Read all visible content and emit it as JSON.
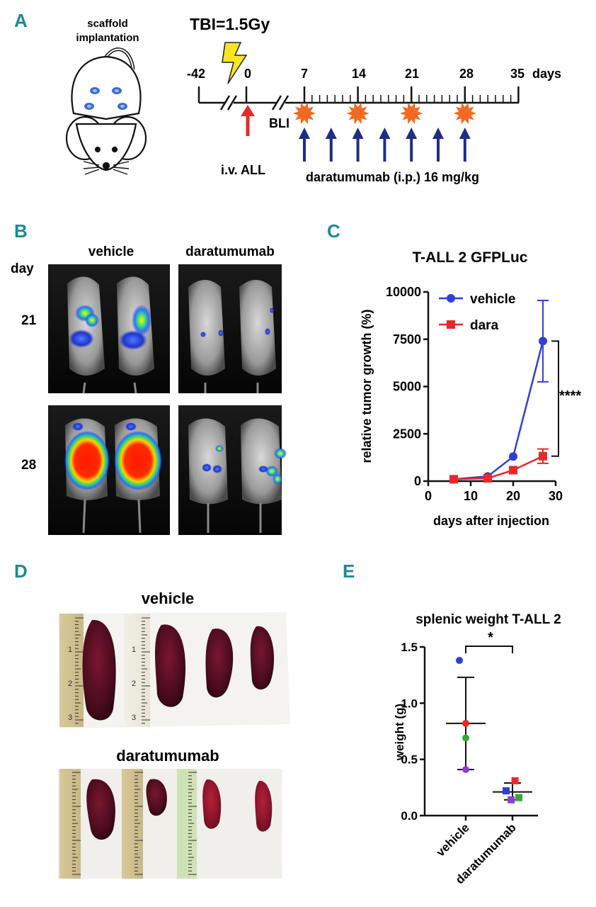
{
  "panel_labels": [
    "A",
    "B",
    "C",
    "D",
    "E"
  ],
  "panel_a": {
    "scaffold_label_line1": "scaffold",
    "scaffold_label_line2": "implantation",
    "tbi_label": "TBI=1.5Gy",
    "timeline_days": [
      "-42",
      "0",
      "7",
      "14",
      "21",
      "28",
      "35"
    ],
    "days_unit": "days",
    "bli_label": "BLI",
    "iv_label": "i.v. ALL",
    "treatment_label": "daratumumab (i.p.) 16 mg/kg",
    "colors": {
      "arrow_red": "#e8282a",
      "arrow_blue": "#1f2d82",
      "burst": "#f26a21",
      "bolt": "#f7e61d"
    }
  },
  "panel_b": {
    "col_headers": [
      "vehicle",
      "daratumumab"
    ],
    "row_header": "day",
    "row_labels": [
      "21",
      "28"
    ]
  },
  "panel_c": {
    "title": "T-ALL 2 GFPLuc",
    "significance": "****",
    "chart_data": {
      "type": "line",
      "title": "T-ALL 2 GFPLuc",
      "xlabel": "days after injection",
      "ylabel": "relative tumor growth (%)",
      "xlim": [
        0,
        30
      ],
      "ylim": [
        0,
        10000
      ],
      "xticks": [
        0,
        10,
        20,
        30
      ],
      "yticks": [
        0,
        2500,
        5000,
        7500,
        10000
      ],
      "legend_position": "top-left",
      "series": [
        {
          "name": "vehicle",
          "color": "#2e3fd8",
          "marker": "circle",
          "x": [
            6,
            14,
            20,
            27
          ],
          "y": [
            100,
            250,
            1300,
            7400
          ],
          "err": [
            0,
            0,
            0,
            2150
          ]
        },
        {
          "name": "dara",
          "color": "#e8282a",
          "marker": "square",
          "x": [
            6,
            14,
            20,
            27
          ],
          "y": [
            100,
            150,
            580,
            1320
          ],
          "err": [
            0,
            0,
            0,
            380
          ]
        }
      ]
    }
  },
  "panel_d": {
    "vehicle_label": "vehicle",
    "dara_label": "daratumumab",
    "ruler_numbers": [
      "1",
      "2",
      "3"
    ]
  },
  "panel_e": {
    "title": "splenic weight T-ALL 2",
    "significance": "*",
    "chart_data": {
      "type": "scatter",
      "title": "splenic weight T-ALL 2",
      "xlabel": "",
      "ylabel": "weight (g)",
      "ylim": [
        0,
        1.5
      ],
      "yticks": [
        "0.0",
        "0.5",
        "1.0",
        "1.5"
      ],
      "categories": [
        "vehicle",
        "daratumumab"
      ],
      "groups": [
        {
          "name": "vehicle",
          "marker": "circle",
          "mean": 0.82,
          "sd_low": 0.41,
          "sd_high": 1.23,
          "points": [
            {
              "value": 1.38,
              "color": "#2e3fd8",
              "offset": -1
            },
            {
              "value": 0.82,
              "color": "#e8282a",
              "offset": 0
            },
            {
              "value": 0.69,
              "color": "#3aa636",
              "offset": 0
            },
            {
              "value": 0.41,
              "color": "#8b3fd6",
              "offset": 0
            }
          ]
        },
        {
          "name": "daratumumab",
          "marker": "square",
          "mean": 0.21,
          "sd_low": 0.14,
          "sd_high": 0.29,
          "points": [
            {
              "value": 0.31,
              "color": "#e8282a",
              "offset": 0.4
            },
            {
              "value": 0.22,
              "color": "#2e3fd8",
              "offset": -1
            },
            {
              "value": 0.16,
              "color": "#3aa636",
              "offset": 1
            },
            {
              "value": 0.14,
              "color": "#8b3fd6",
              "offset": -0.2
            }
          ]
        }
      ]
    }
  }
}
